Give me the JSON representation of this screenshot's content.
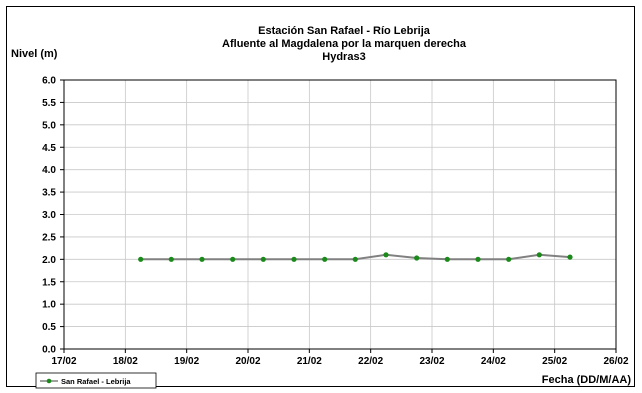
{
  "chart_data": {
    "type": "line",
    "title": [
      "Estación San Rafael - Río Lebrija",
      "Afluente al Magdalena por la marquen derecha",
      "Hydras3"
    ],
    "ylabel": "Nivel (m)",
    "xlabel": "Fecha (DD/M/AA)",
    "ylim": [
      0,
      6
    ],
    "yticks": [
      "0.0",
      "0.5",
      "1.0",
      "1.5",
      "2.0",
      "2.5",
      "3.0",
      "3.5",
      "4.0",
      "4.5",
      "5.0",
      "5.5",
      "6.0"
    ],
    "xlim": [
      "17/02",
      "26/02"
    ],
    "xticks": [
      "17/02",
      "18/02",
      "19/02",
      "20/02",
      "21/02",
      "22/02",
      "23/02",
      "24/02",
      "25/02",
      "26/02"
    ],
    "grid": true,
    "legend_position": "bottom-left",
    "series": [
      {
        "name": "San Rafael - Lebrija",
        "line_color": "#808080",
        "marker_color": "#1a8a1a",
        "x": [
          "18/02 06:00",
          "18/02 18:00",
          "19/02 06:00",
          "19/02 18:00",
          "20/02 06:00",
          "20/02 18:00",
          "21/02 06:00",
          "21/02 18:00",
          "22/02 06:00",
          "22/02 18:00",
          "23/02 06:00",
          "23/02 18:00",
          "24/02 06:00",
          "24/02 18:00",
          "25/02 06:00"
        ],
        "values": [
          2.0,
          2.0,
          2.0,
          2.0,
          2.0,
          2.0,
          2.0,
          2.0,
          2.1,
          2.03,
          2.0,
          2.0,
          2.0,
          2.1,
          2.05
        ]
      }
    ]
  }
}
